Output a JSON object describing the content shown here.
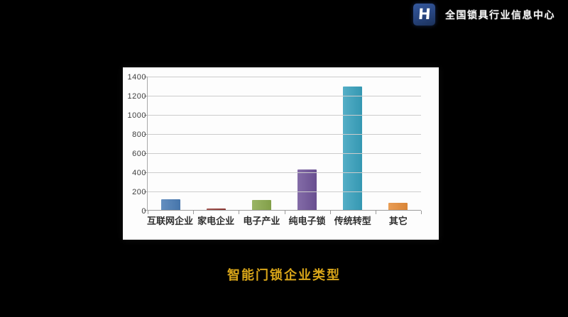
{
  "header": {
    "logo_letter": "H",
    "brand": "全国锁具行业信息中心"
  },
  "footer": {
    "title": "智能门锁企业类型"
  },
  "chart_data": {
    "type": "bar",
    "title": "",
    "xlabel": "",
    "ylabel": "",
    "categories": [
      "互联网企业",
      "家电企业",
      "电子产业",
      "纯电子锁",
      "传统转型",
      "其它"
    ],
    "values": [
      120,
      20,
      110,
      430,
      1300,
      85
    ],
    "bar_colors": [
      "#4a7cb5",
      "#943b36",
      "#8aa94d",
      "#6f5499",
      "#38a1bd",
      "#e68d3a"
    ],
    "ylim": [
      0,
      1400
    ],
    "ytick_step": 200,
    "ytick_labels": [
      "0",
      "200",
      "400",
      "600",
      "800",
      "1000",
      "1200",
      "1400"
    ],
    "grid": true,
    "legend": false,
    "plot_background": "#fdfdfd"
  },
  "colors": {
    "background": "#000000",
    "panel": "#fdfdfd",
    "title_gold": "#d9a619",
    "gridline": "#cccccc",
    "axis_line": "#9a9a9a",
    "axis_text": "#3c3c3c",
    "logo_blue": "#27447e",
    "brand_text": "#f5f5f5"
  }
}
